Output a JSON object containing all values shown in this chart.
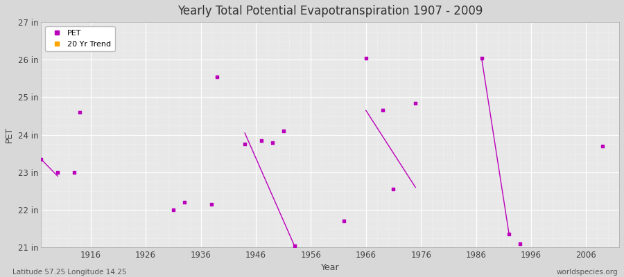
{
  "title": "Yearly Total Potential Evapotranspiration 1907 - 2009",
  "xlabel": "Year",
  "ylabel": "PET",
  "subtitle_left": "Latitude 57.25 Longitude 14.25",
  "subtitle_right": "worldspecies.org",
  "xlim": [
    1907,
    2012
  ],
  "ylim": [
    21,
    27
  ],
  "ytick_labels": [
    "21 in",
    "22 in",
    "23 in",
    "24 in",
    "25 in",
    "26 in",
    "27 in"
  ],
  "ytick_values": [
    21,
    22,
    23,
    24,
    25,
    26,
    27
  ],
  "xtick_values": [
    1916,
    1926,
    1936,
    1946,
    1956,
    1966,
    1976,
    1986,
    1996,
    2006
  ],
  "pet_color": "#bb00bb",
  "trend_color": "#ffa500",
  "background_color": "#d8d8d8",
  "plot_bg_color": "#e8e8e8",
  "pet_data": [
    [
      1907,
      23.35
    ],
    [
      1910,
      23.0
    ],
    [
      1913,
      23.0
    ],
    [
      1914,
      24.6
    ],
    [
      1931,
      22.0
    ],
    [
      1933,
      22.2
    ],
    [
      1938,
      22.15
    ],
    [
      1939,
      25.55
    ],
    [
      1944,
      23.75
    ],
    [
      1947,
      23.85
    ],
    [
      1949,
      23.8
    ],
    [
      1951,
      24.1
    ],
    [
      1953,
      21.05
    ],
    [
      1962,
      21.7
    ],
    [
      1966,
      26.05
    ],
    [
      1969,
      24.65
    ],
    [
      1971,
      22.55
    ],
    [
      1975,
      24.85
    ],
    [
      1987,
      26.05
    ],
    [
      1992,
      21.35
    ],
    [
      1994,
      21.1
    ],
    [
      2009,
      23.7
    ]
  ],
  "trend_segments": [
    [
      [
        1907,
        23.35
      ],
      [
        1910,
        22.9
      ]
    ],
    [
      [
        1944,
        24.05
      ],
      [
        1953,
        21.05
      ]
    ],
    [
      [
        1966,
        24.65
      ],
      [
        1975,
        22.6
      ]
    ],
    [
      [
        1987,
        26.05
      ],
      [
        1992,
        21.35
      ]
    ]
  ],
  "grid_major_color": "#ffffff",
  "grid_minor_color": "#cccccc"
}
